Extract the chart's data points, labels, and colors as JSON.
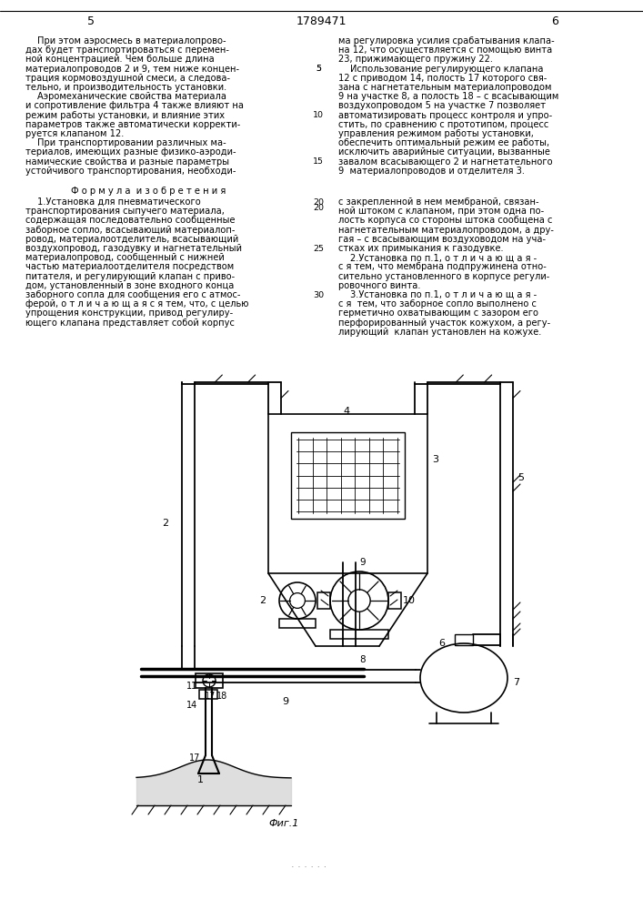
{
  "background_color": "#ffffff",
  "text_color": "#000000",
  "page_num_left": "5",
  "patent_number": "1789471",
  "page_num_right": "6",
  "figsize": [
    7.07,
    10.0
  ],
  "caption": "Фиг.1"
}
